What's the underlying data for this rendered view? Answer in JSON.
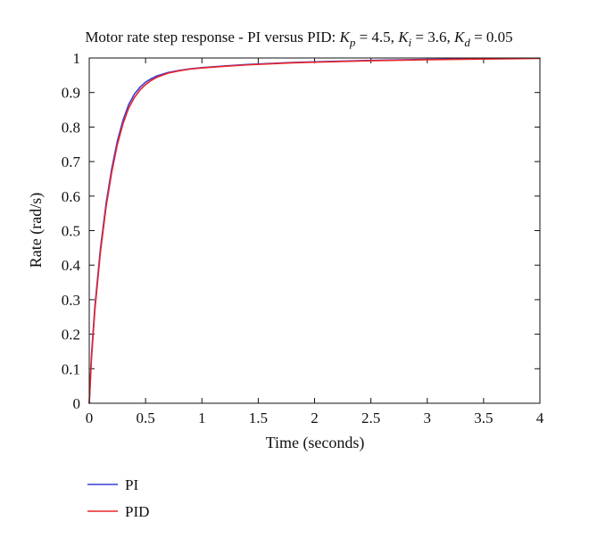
{
  "chart_data": {
    "type": "line",
    "title": {
      "prefix": "Motor rate step response - PI versus PID: ",
      "parts": [
        {
          "sym": "K",
          "sub": "p",
          "value": " = 4.5"
        },
        {
          "sym": "K",
          "sub": "i",
          "value": " = 3.6"
        },
        {
          "sym": "K",
          "sub": "d",
          "value": " = 0.05"
        }
      ],
      "separator": ", "
    },
    "xlabel": "Time (seconds)",
    "ylabel": "Rate (rad/s)",
    "xlim": [
      0,
      4
    ],
    "ylim": [
      0,
      1
    ],
    "x_ticks": [
      0,
      0.5,
      1,
      1.5,
      2,
      2.5,
      3,
      3.5,
      4
    ],
    "y_ticks": [
      0,
      0.1,
      0.2,
      0.3,
      0.4,
      0.5,
      0.6,
      0.7,
      0.8,
      0.9,
      1
    ],
    "grid": false,
    "legend_position": "bottom-left, below plot",
    "series": [
      {
        "name": "PI",
        "color": "#3b3bd6",
        "x": [
          0,
          0.02,
          0.05,
          0.1,
          0.15,
          0.2,
          0.25,
          0.3,
          0.35,
          0.4,
          0.45,
          0.5,
          0.55,
          0.6,
          0.7,
          0.8,
          0.9,
          1.0,
          1.2,
          1.4,
          1.6,
          1.8,
          2.0,
          2.5,
          3.0,
          3.5,
          3.7
        ],
        "y": [
          0,
          0.14,
          0.28,
          0.45,
          0.58,
          0.68,
          0.76,
          0.82,
          0.865,
          0.895,
          0.915,
          0.93,
          0.94,
          0.948,
          0.958,
          0.964,
          0.969,
          0.972,
          0.977,
          0.981,
          0.984,
          0.987,
          0.989,
          0.993,
          0.996,
          0.998,
          0.999
        ]
      },
      {
        "name": "PID",
        "color": "#e8252a",
        "x": [
          0,
          0.02,
          0.05,
          0.1,
          0.15,
          0.2,
          0.25,
          0.3,
          0.35,
          0.4,
          0.45,
          0.5,
          0.55,
          0.6,
          0.7,
          0.8,
          0.9,
          1.0,
          1.2,
          1.4,
          1.6,
          1.8,
          2.0,
          2.5,
          3.0,
          3.5,
          4.0
        ],
        "y": [
          0,
          0.13,
          0.27,
          0.44,
          0.57,
          0.67,
          0.75,
          0.81,
          0.855,
          0.885,
          0.907,
          0.923,
          0.935,
          0.944,
          0.956,
          0.963,
          0.968,
          0.971,
          0.976,
          0.98,
          0.983,
          0.986,
          0.988,
          0.992,
          0.995,
          0.997,
          0.999
        ]
      }
    ]
  }
}
